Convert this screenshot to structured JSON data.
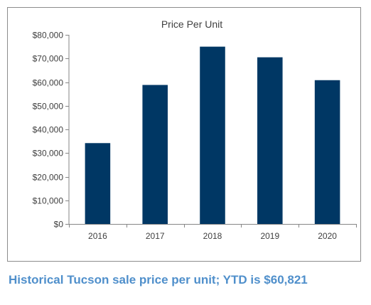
{
  "caption": "Historical Tucson sale price per unit; YTD is $60,821",
  "colors": {
    "bar": "#003764",
    "axis": "#868686",
    "text": "#404040",
    "caption": "#4f8fcb"
  },
  "chart_data": {
    "type": "bar",
    "title": "Price Per Unit",
    "xlabel": "",
    "ylabel": "",
    "categories": [
      "2016",
      "2017",
      "2018",
      "2019",
      "2020"
    ],
    "values": [
      34200,
      58800,
      75000,
      70500,
      60821
    ],
    "ylim": [
      0,
      80000
    ],
    "yticks": [
      0,
      10000,
      20000,
      30000,
      40000,
      50000,
      60000,
      70000,
      80000
    ],
    "ytick_labels": [
      "$0",
      "$10,000",
      "$20,000",
      "$30,000",
      "$40,000",
      "$50,000",
      "$60,000",
      "$70,000",
      "$80,000"
    ],
    "grid": false,
    "legend": "none"
  }
}
